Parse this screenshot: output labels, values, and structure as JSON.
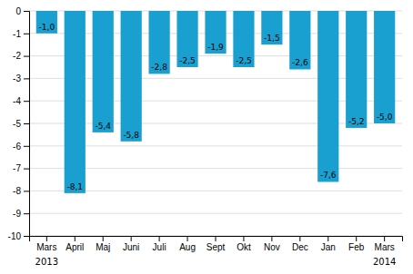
{
  "chart_data": {
    "type": "bar",
    "categories": [
      "Mars",
      "April",
      "Maj",
      "Juni",
      "Juli",
      "Aug",
      "Sept",
      "Okt",
      "Nov",
      "Dec",
      "Jan",
      "Feb",
      "Mars"
    ],
    "values": [
      -1.0,
      -8.1,
      -5.4,
      -5.8,
      -2.8,
      -2.5,
      -1.9,
      -2.5,
      -1.5,
      -2.6,
      -7.6,
      -5.2,
      -5.0
    ],
    "value_labels": [
      "-1,0",
      "-8,1",
      "-5,4",
      "-5,8",
      "-2,8",
      "-2,5",
      "-1,9",
      "-2,5",
      "-1,5",
      "-2,6",
      "-7,6",
      "-5,2",
      "-5,0"
    ],
    "data_labels": true,
    "color": "#1aa0d0",
    "ylim": [
      -10,
      0
    ],
    "yticks": [
      0,
      -1,
      -2,
      -3,
      -4,
      -5,
      -6,
      -7,
      -8,
      -9,
      -10
    ],
    "grid": true,
    "annotations": [
      {
        "text": "2013",
        "x": 0
      },
      {
        "text": "2014",
        "x": 12
      }
    ]
  }
}
